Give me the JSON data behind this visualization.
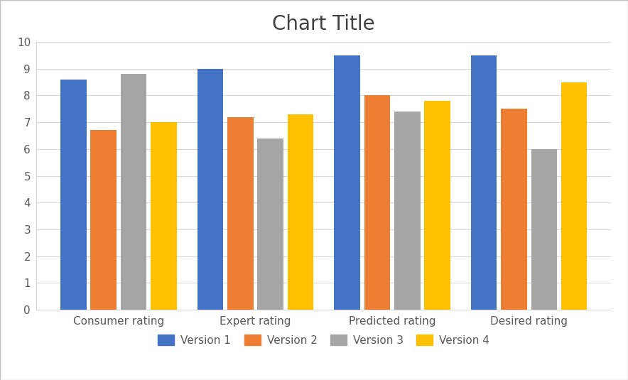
{
  "title": "Chart Title",
  "categories": [
    "Consumer rating",
    "Expert rating",
    "Predicted rating",
    "Desired rating"
  ],
  "series": [
    {
      "name": "Version 1",
      "values": [
        8.6,
        9.0,
        9.5,
        9.5
      ],
      "color": "#4472C4"
    },
    {
      "name": "Version 2",
      "values": [
        6.7,
        7.2,
        8.0,
        7.5
      ],
      "color": "#ED7D31"
    },
    {
      "name": "Version 3",
      "values": [
        8.8,
        6.4,
        7.4,
        6.0
      ],
      "color": "#A5A5A5"
    },
    {
      "name": "Version 4",
      "values": [
        7.0,
        7.3,
        7.8,
        8.5
      ],
      "color": "#FFC000"
    }
  ],
  "ylim": [
    0,
    10
  ],
  "yticks": [
    0,
    1,
    2,
    3,
    4,
    5,
    6,
    7,
    8,
    9,
    10
  ],
  "title_fontsize": 20,
  "tick_fontsize": 11,
  "legend_fontsize": 11,
  "bg_color": "#FFFFFF",
  "plot_bg_color": "#FFFFFF",
  "grid_color": "#D9D9D9",
  "frame_color": "#C0C0C0"
}
